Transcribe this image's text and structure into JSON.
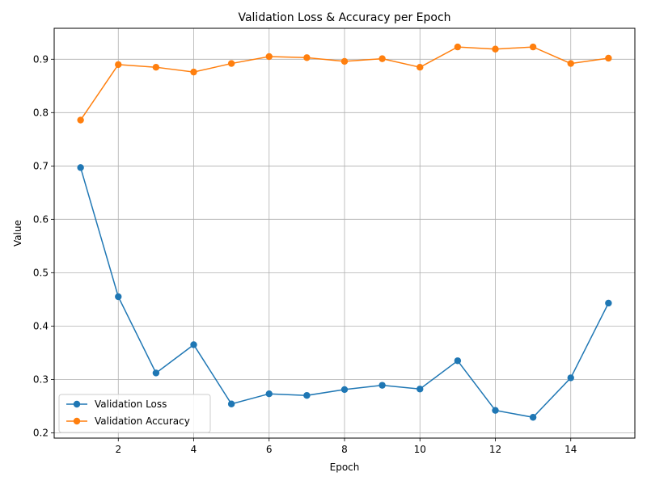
{
  "chart_data": {
    "type": "line",
    "title": "Validation Loss & Accuracy per Epoch",
    "xlabel": "Epoch",
    "ylabel": "Value",
    "x": [
      1,
      2,
      3,
      4,
      5,
      6,
      7,
      8,
      9,
      10,
      11,
      12,
      13,
      14,
      15
    ],
    "xlim": [
      0.3,
      15.7
    ],
    "ylim": [
      0.19,
      0.958
    ],
    "xticks": [
      2,
      4,
      6,
      8,
      10,
      12,
      14
    ],
    "yticks": [
      0.2,
      0.3,
      0.4,
      0.5,
      0.6,
      0.7,
      0.8,
      0.9
    ],
    "grid": true,
    "legend_position": "lower-left",
    "series": [
      {
        "name": "Validation Loss",
        "color": "#1f77b4",
        "marker": "circle",
        "values": [
          0.697,
          0.455,
          0.312,
          0.365,
          0.254,
          0.273,
          0.27,
          0.281,
          0.289,
          0.282,
          0.335,
          0.242,
          0.229,
          0.303,
          0.443
        ]
      },
      {
        "name": "Validation Accuracy",
        "color": "#ff7f0e",
        "marker": "circle",
        "values": [
          0.786,
          0.89,
          0.885,
          0.876,
          0.892,
          0.905,
          0.903,
          0.896,
          0.901,
          0.885,
          0.923,
          0.919,
          0.923,
          0.892,
          0.902
        ]
      }
    ]
  }
}
